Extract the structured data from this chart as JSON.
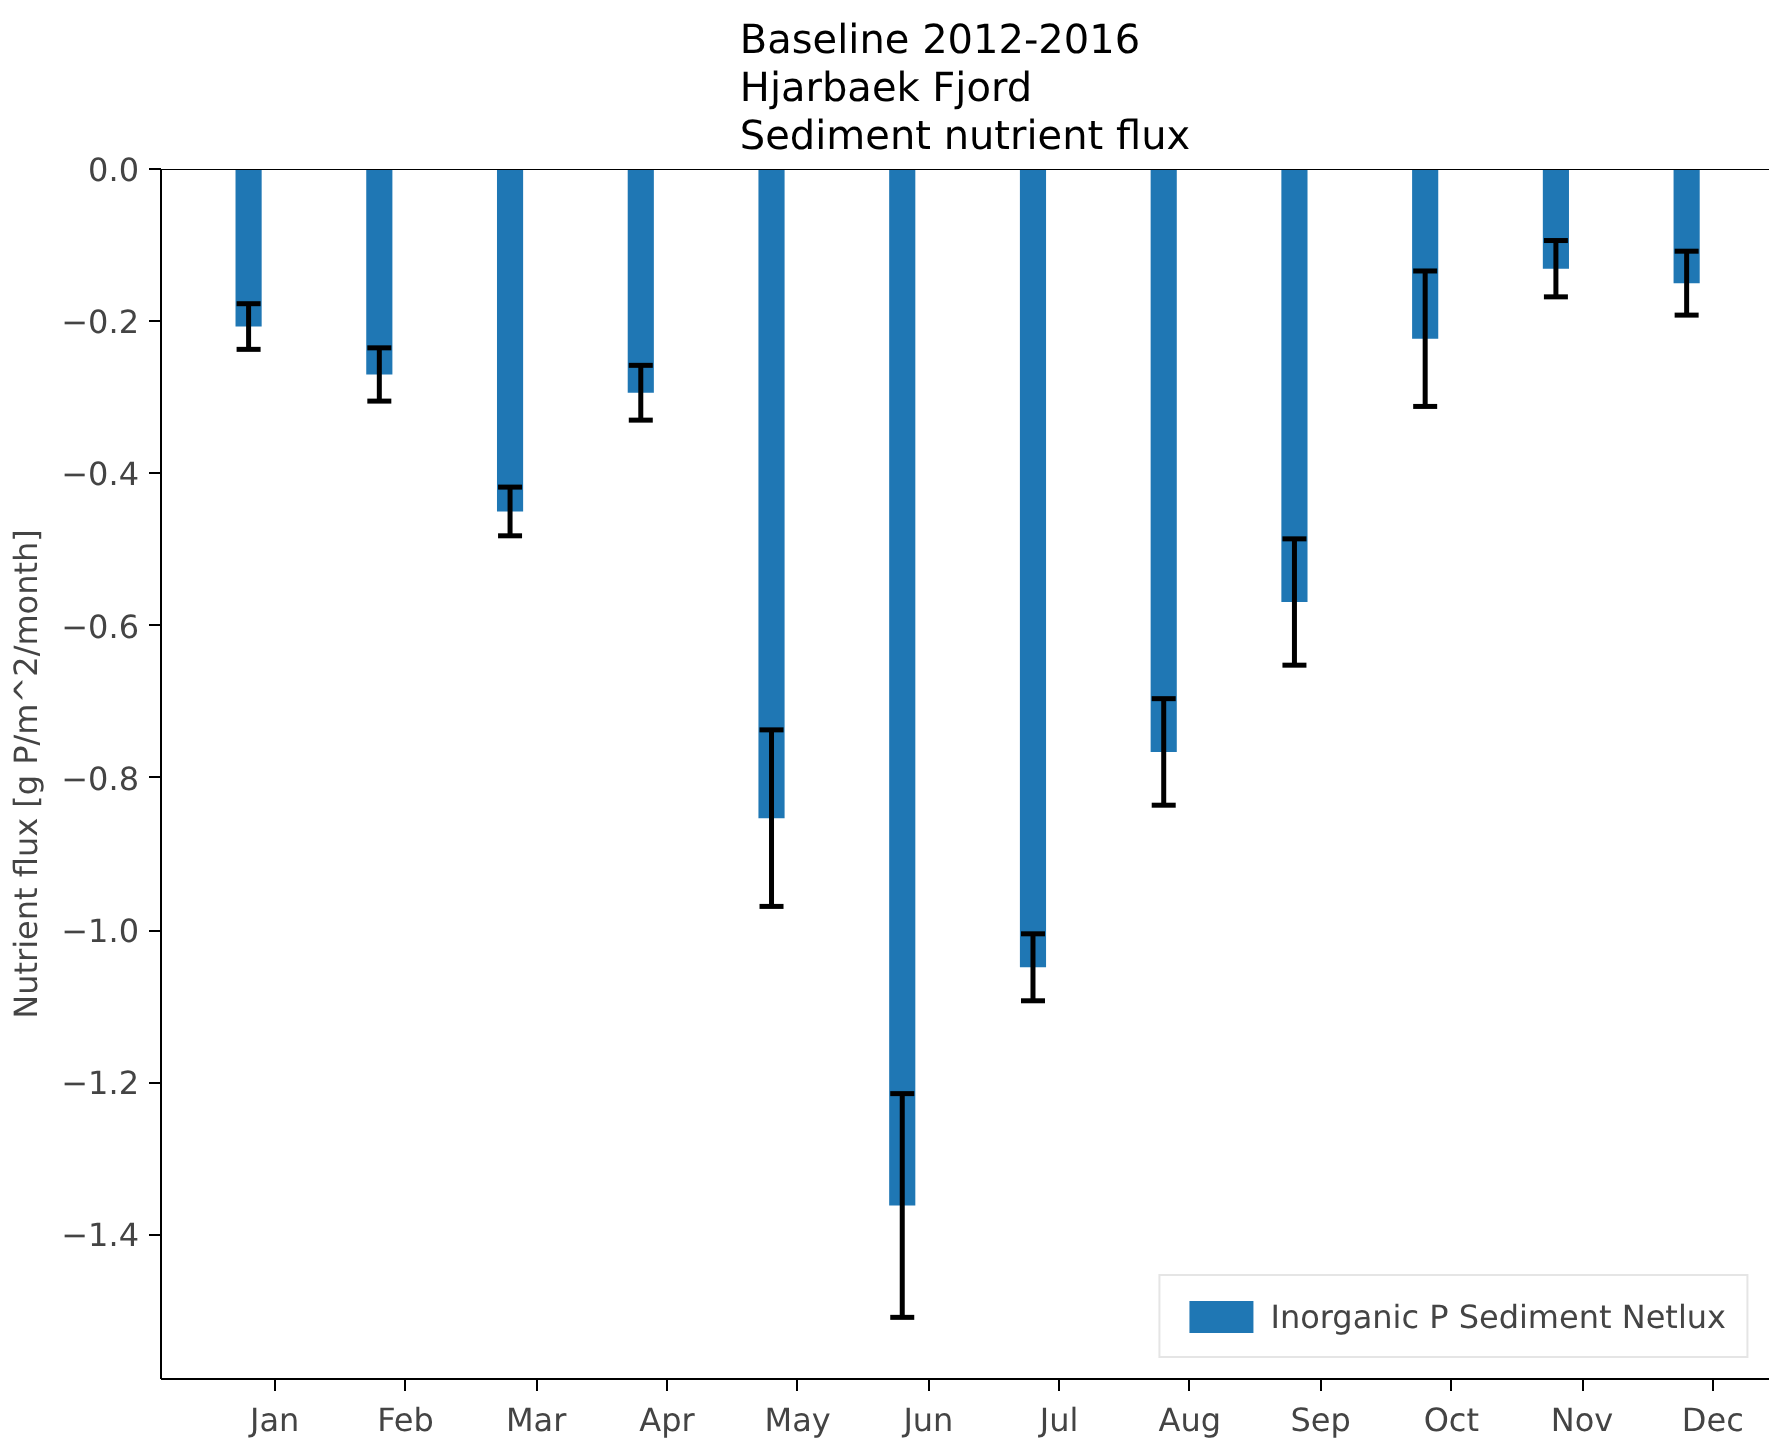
{
  "chart_data": {
    "type": "bar",
    "title": "Baseline 2012-2016\nHjarbaek Fjord\nSediment nutrient flux",
    "ylabel": "Nutrient flux [g P/m^2/month]",
    "categories": [
      "Jan",
      "Feb",
      "Mar",
      "Apr",
      "May",
      "Jun",
      "Jul",
      "Aug",
      "Sep",
      "Oct",
      "Nov",
      "Dec"
    ],
    "series": [
      {
        "name": "Inorganic P Sediment Netlux",
        "color": "#1f77b4",
        "values": [
          -0.207,
          -0.27,
          -0.45,
          -0.294,
          -0.853,
          -1.362,
          -1.049,
          -0.766,
          -0.569,
          -0.223,
          -0.131,
          -0.15
        ],
        "errors": [
          0.03,
          0.035,
          0.032,
          0.036,
          0.116,
          0.147,
          0.044,
          0.07,
          0.083,
          0.089,
          0.037,
          0.042
        ]
      }
    ],
    "ylim": [
      -1.59,
      0
    ],
    "yticks": [
      {
        "value": 0,
        "label": "0.0"
      },
      -0.2,
      -0.4,
      -0.6,
      -0.8,
      {
        "value": -1.0,
        "label": "−1.0"
      },
      -1.2,
      -1.4
    ],
    "grid": false,
    "legend": "bottom right"
  }
}
